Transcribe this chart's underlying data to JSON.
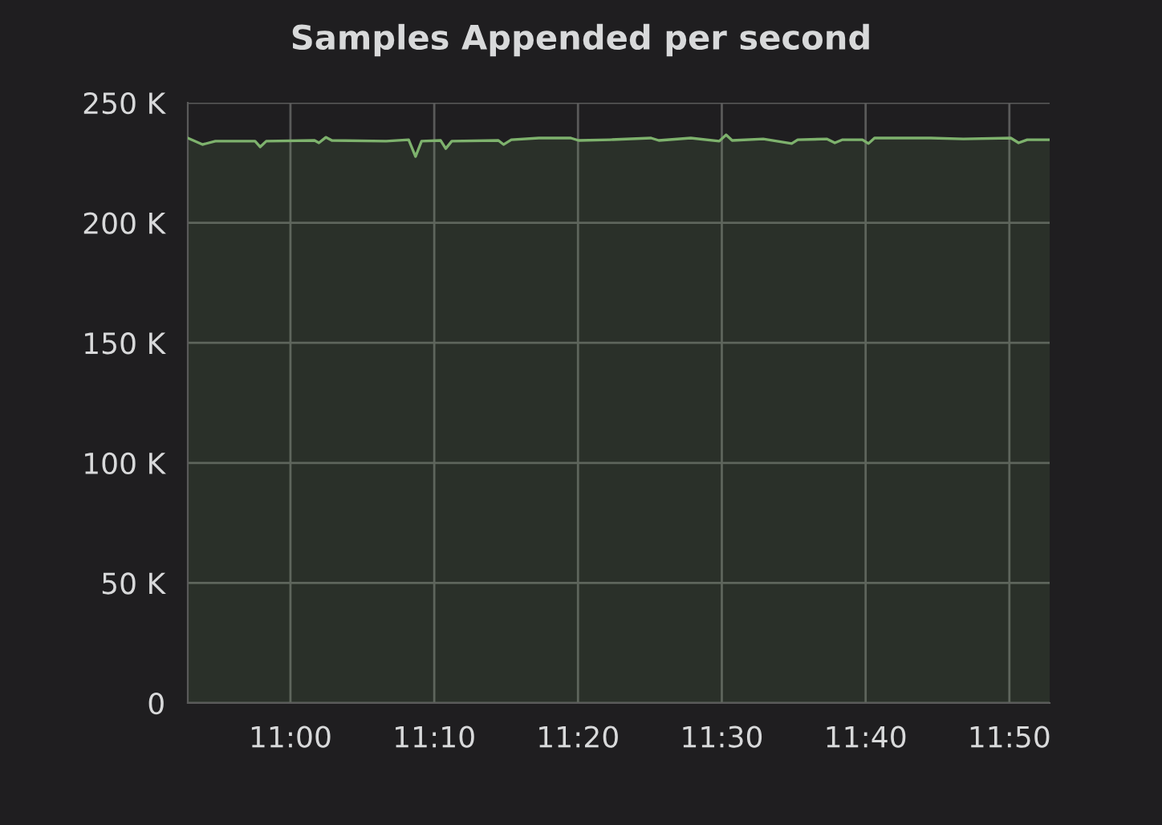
{
  "chart_data": {
    "type": "area",
    "title": "Samples Appended per second",
    "x": [
      10.881,
      10.898,
      10.913,
      10.959,
      10.965,
      10.972,
      11.028,
      11.033,
      11.041,
      11.048,
      11.111,
      11.137,
      11.145,
      11.152,
      11.174,
      11.18,
      11.187,
      11.241,
      11.247,
      11.256,
      11.288,
      11.325,
      11.334,
      11.371,
      11.418,
      11.427,
      11.464,
      11.497,
      11.505,
      11.512,
      11.548,
      11.581,
      11.588,
      11.622,
      11.631,
      11.64,
      11.663,
      11.67,
      11.677,
      11.742,
      11.78,
      11.835,
      11.844,
      11.854,
      11.88
    ],
    "series": [
      {
        "color": "#7eb26d",
        "values": [
          235300,
          232600,
          234000,
          234000,
          231600,
          234000,
          234300,
          233300,
          235600,
          234300,
          234000,
          234600,
          227600,
          234000,
          234300,
          230900,
          234000,
          234300,
          232600,
          234600,
          235300,
          235300,
          234300,
          234600,
          235300,
          234300,
          235300,
          234000,
          236600,
          234300,
          234900,
          233000,
          234600,
          234900,
          233300,
          234600,
          234600,
          233000,
          235300,
          235300,
          234900,
          235300,
          233300,
          234600,
          234600
        ]
      }
    ],
    "xlim": [
      10.881,
      11.88
    ],
    "xticks": [
      {
        "value": 11.0,
        "label": "11:00"
      },
      {
        "value": 11.1667,
        "label": "11:10"
      },
      {
        "value": 11.3333,
        "label": "11:20"
      },
      {
        "value": 11.5,
        "label": "11:30"
      },
      {
        "value": 11.6667,
        "label": "11:40"
      },
      {
        "value": 11.8333,
        "label": "11:50"
      }
    ],
    "ylim": [
      0,
      250000
    ],
    "yticks": [
      0,
      {
        "value": 50000,
        "label": "50 K"
      },
      {
        "value": 100000,
        "label": "100 K"
      },
      {
        "value": 150000,
        "label": "150 K"
      },
      {
        "value": 200000,
        "label": "200 K"
      },
      {
        "value": 250000,
        "label": "250 K"
      }
    ],
    "grid": true
  }
}
